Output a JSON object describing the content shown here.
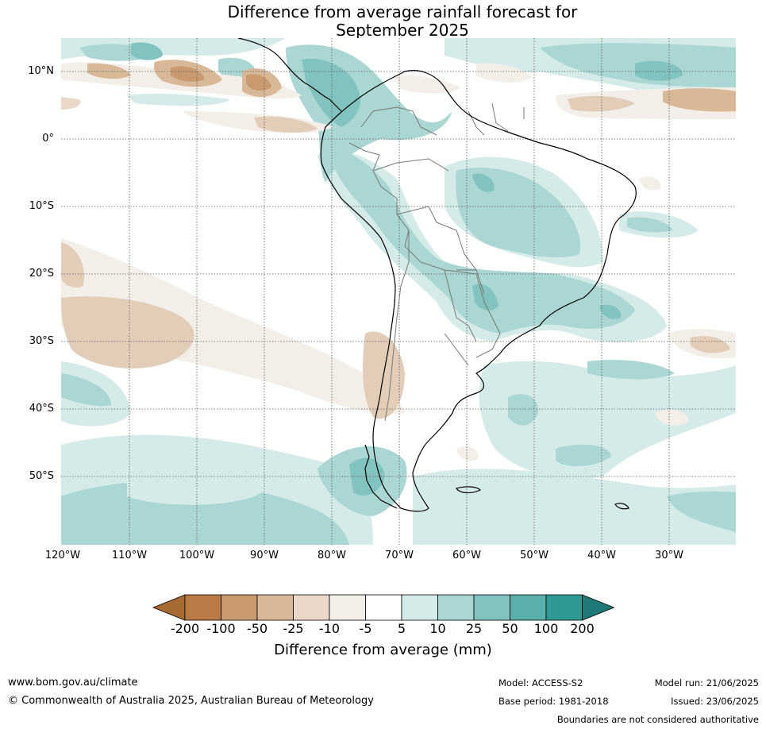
{
  "title": {
    "line1": "Difference from average rainfall forecast for",
    "line2": "September 2025"
  },
  "map": {
    "lat_labels": [
      "10°N",
      "0°",
      "10°S",
      "20°S",
      "30°S",
      "40°S",
      "50°S"
    ],
    "lon_labels": [
      "120°W",
      "110°W",
      "100°W",
      "90°W",
      "80°W",
      "70°W",
      "60°W",
      "50°W",
      "40°W",
      "30°W"
    ]
  },
  "legend": {
    "ticks": [
      "-200",
      "-100",
      "-50",
      "-25",
      "-10",
      "-5",
      "5",
      "10",
      "25",
      "50",
      "100",
      "200"
    ],
    "colors": [
      "#a86a33",
      "#b97a45",
      "#c99a6f",
      "#d9b898",
      "#ead9c8",
      "#f3eee8",
      "#ffffff",
      "#d5ebe9",
      "#aad6d4",
      "#82c2bf",
      "#5aaeab",
      "#2f9993",
      "#1f7a77"
    ],
    "caption": "Difference from average (mm)"
  },
  "footer": {
    "website": "www.bom.gov.au/climate",
    "copyright": "© Commonwealth of Australia 2025, Australian Bureau of Meteorology",
    "model": "Model: ACCESS-S2",
    "base_period": "Base period: 1981-2018",
    "model_run": "Model run: 21/06/2025",
    "issued": "Issued: 23/06/2025",
    "disclaimer": "Boundaries are not considered authoritative"
  }
}
